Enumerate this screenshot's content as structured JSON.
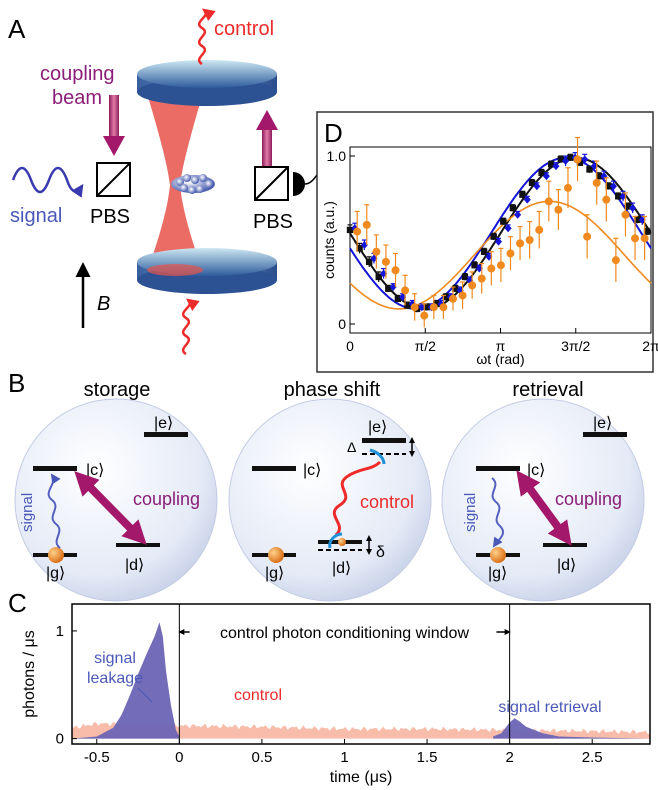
{
  "panels": {
    "a": "A",
    "b": "B",
    "c": "C",
    "d": "D"
  },
  "panel_a": {
    "control": "control",
    "coupling_line1": "coupling",
    "coupling_line2": "beam",
    "signal": "signal",
    "pbs_left": "PBS",
    "pbs_right": "PBS",
    "field": "B"
  },
  "panel_b": {
    "storage": {
      "title": "storage",
      "e": "|e⟩",
      "c": "|c⟩",
      "g": "|g⟩",
      "d": "|d⟩",
      "signal": "signal",
      "coupling": "coupling"
    },
    "phase": {
      "title": "phase shift",
      "e": "|e⟩",
      "c": "|c⟩",
      "g": "|g⟩",
      "d": "|d⟩",
      "control": "control",
      "Delta": "Δ",
      "delta": "δ"
    },
    "retrieval": {
      "title": "retrieval",
      "e": "|e⟩",
      "c": "|c⟩",
      "g": "|g⟩",
      "d": "|d⟩",
      "signal": "signal",
      "coupling": "coupling"
    }
  },
  "colors": {
    "signal_fill": "#6b64b4",
    "control_fill": "#f7b09b",
    "black_series": "#111111",
    "blue_series": "#1515d8",
    "orange_series": "#f08a1e",
    "coupling": "#a3186a",
    "control_red": "#ee2b2b"
  },
  "chart_data": [
    {
      "id": "C",
      "type": "area",
      "xlabel": "time (μs)",
      "ylabel": "photons / μs",
      "xlim": [
        -0.65,
        2.85
      ],
      "ylim": [
        -0.05,
        1.25
      ],
      "xticks": [
        "-0.5",
        "0",
        "0.5",
        "1",
        "1.5",
        "2",
        "2.5"
      ],
      "yticks": [
        "0",
        "1"
      ],
      "annotation": "control photon conditioning window",
      "window": [
        0,
        2
      ],
      "labels": {
        "signal_leakage_1": "signal",
        "signal_leakage_2": "leakage",
        "control": "control",
        "signal_retrieval": "signal retrieval"
      },
      "series": [
        {
          "name": "signal",
          "x": [
            -0.65,
            -0.5,
            -0.4,
            -0.35,
            -0.3,
            -0.25,
            -0.2,
            -0.15,
            -0.12,
            -0.1,
            -0.08,
            -0.05,
            -0.02,
            0,
            1.9,
            1.95,
            2.0,
            2.03,
            2.06,
            2.1,
            2.2,
            2.3,
            2.5,
            2.85
          ],
          "y": [
            0,
            0.02,
            0.1,
            0.22,
            0.4,
            0.6,
            0.78,
            0.95,
            1.08,
            0.95,
            0.62,
            0.3,
            0.08,
            0.02,
            0.02,
            0.05,
            0.15,
            0.19,
            0.16,
            0.11,
            0.05,
            0.02,
            0.01,
            0
          ]
        },
        {
          "name": "control",
          "x": [
            -0.65,
            -0.5,
            0,
            0.5,
            1,
            1.5,
            2,
            2.5,
            2.85
          ],
          "y": [
            0.1,
            0.14,
            0.12,
            0.11,
            0.09,
            0.09,
            0.08,
            0.07,
            0.06
          ]
        }
      ]
    },
    {
      "id": "D",
      "type": "scatter",
      "xlabel": "ωt (rad)",
      "ylabel": "counts (a.u.)",
      "xlim": [
        0,
        6.2832
      ],
      "ylim": [
        0,
        1.0
      ],
      "xticks": [
        "0",
        "π/2",
        "π",
        "3π/2",
        "2π"
      ],
      "yticks": [
        "0",
        "1.0"
      ],
      "series": [
        {
          "name": "black",
          "x": [
            0.0,
            0.2,
            0.4,
            0.6,
            0.8,
            1.0,
            1.2,
            1.4,
            1.6,
            1.8,
            2.0,
            2.2,
            2.4,
            2.6,
            2.8,
            3.0,
            3.2,
            3.4,
            3.6,
            3.8,
            4.0,
            4.2,
            4.4,
            4.6,
            4.8,
            5.0,
            5.2,
            5.4,
            5.6,
            5.8,
            6.0,
            6.2
          ],
          "y": [
            0.56,
            0.45,
            0.37,
            0.28,
            0.21,
            0.15,
            0.11,
            0.09,
            0.1,
            0.12,
            0.16,
            0.21,
            0.28,
            0.35,
            0.43,
            0.52,
            0.61,
            0.69,
            0.77,
            0.84,
            0.9,
            0.95,
            0.98,
            0.99,
            0.96,
            0.92,
            0.88,
            0.82,
            0.76,
            0.7,
            0.62,
            0.55
          ],
          "err": [
            0.03,
            0.03,
            0.03,
            0.03,
            0.02,
            0.02,
            0.02,
            0.02,
            0.02,
            0.02,
            0.02,
            0.02,
            0.02,
            0.02,
            0.02,
            0.02,
            0.02,
            0.02,
            0.02,
            0.02,
            0.02,
            0.02,
            0.02,
            0.02,
            0.02,
            0.02,
            0.02,
            0.02,
            0.02,
            0.02,
            0.02,
            0.02
          ],
          "fit": {
            "amp": 0.45,
            "offset": 0.54,
            "phase": 0.0
          }
        },
        {
          "name": "blue",
          "x": [
            0.1,
            0.3,
            0.5,
            0.7,
            0.9,
            1.1,
            1.3,
            1.5,
            1.7,
            1.9,
            2.1,
            2.3,
            2.5,
            2.7,
            2.9,
            3.1,
            3.3,
            3.5,
            3.7,
            3.9,
            4.1,
            4.3,
            4.5,
            4.7,
            4.9,
            5.1,
            5.3,
            5.5,
            5.7,
            5.9,
            6.1
          ],
          "y": [
            0.57,
            0.47,
            0.39,
            0.3,
            0.22,
            0.16,
            0.12,
            0.1,
            0.1,
            0.12,
            0.16,
            0.2,
            0.26,
            0.33,
            0.4,
            0.49,
            0.57,
            0.65,
            0.74,
            0.82,
            0.88,
            0.94,
            0.97,
            0.99,
            0.98,
            0.94,
            0.88,
            0.82,
            0.76,
            0.69,
            0.62
          ],
          "err": [
            0.03,
            0.03,
            0.03,
            0.03,
            0.02,
            0.02,
            0.02,
            0.02,
            0.02,
            0.02,
            0.02,
            0.02,
            0.02,
            0.02,
            0.02,
            0.02,
            0.02,
            0.02,
            0.02,
            0.02,
            0.02,
            0.02,
            0.03,
            0.03,
            0.03,
            0.03,
            0.03,
            0.03,
            0.03,
            0.03,
            0.03
          ],
          "fit": {
            "amp": 0.45,
            "offset": 0.54,
            "phase": 0.2
          }
        },
        {
          "name": "orange",
          "x": [
            0.15,
            0.35,
            0.55,
            0.75,
            0.95,
            1.15,
            1.35,
            1.55,
            1.75,
            1.95,
            2.15,
            2.35,
            2.55,
            2.75,
            2.95,
            3.15,
            3.35,
            3.55,
            3.75,
            3.95,
            4.15,
            4.35,
            4.55,
            4.75,
            4.95,
            5.15,
            5.35,
            5.55,
            5.75,
            5.95,
            6.15
          ],
          "y": [
            0.55,
            0.59,
            0.43,
            0.37,
            0.32,
            0.2,
            0.1,
            0.05,
            0.1,
            0.1,
            0.15,
            0.17,
            0.23,
            0.27,
            0.33,
            0.35,
            0.42,
            0.48,
            0.5,
            0.56,
            0.73,
            0.68,
            0.81,
            0.98,
            0.52,
            0.84,
            0.74,
            0.38,
            0.65,
            0.51,
            0.51
          ],
          "err": [
            0.12,
            0.12,
            0.1,
            0.1,
            0.1,
            0.09,
            0.08,
            0.07,
            0.07,
            0.07,
            0.07,
            0.08,
            0.08,
            0.09,
            0.1,
            0.1,
            0.1,
            0.1,
            0.11,
            0.11,
            0.12,
            0.12,
            0.12,
            0.13,
            0.13,
            0.13,
            0.13,
            0.13,
            0.13,
            0.13,
            0.13
          ],
          "fit": {
            "amp": 0.32,
            "offset": 0.41,
            "phase": 0.55
          }
        }
      ]
    }
  ]
}
